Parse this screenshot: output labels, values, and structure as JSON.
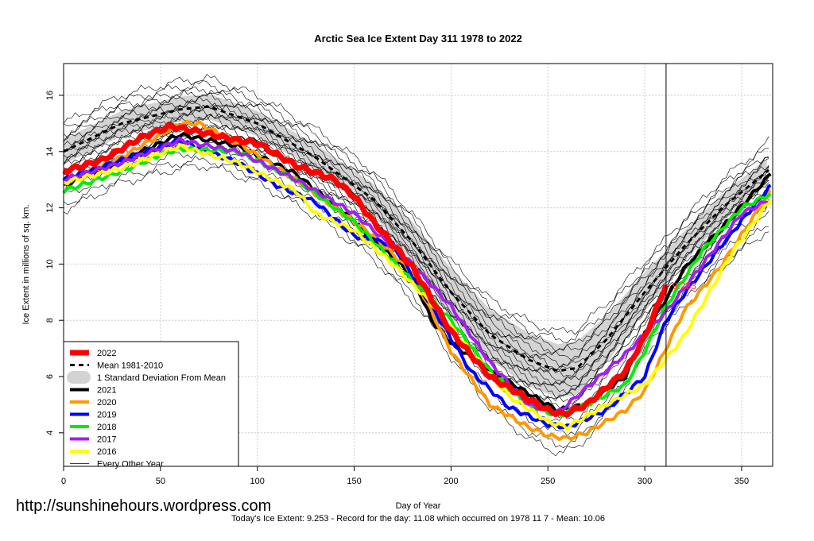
{
  "chart_data": {
    "type": "line",
    "title": "Arctic Sea Ice Extent Day 311 1978 to 2022",
    "xlabel": "Day of Year",
    "ylabel": "Ice Extent in millions of sq. km.",
    "xlim": [
      0,
      366
    ],
    "ylim": [
      2.8,
      17.1
    ],
    "xticks": [
      0,
      50,
      100,
      150,
      200,
      250,
      300,
      350
    ],
    "yticks": [
      4,
      6,
      8,
      10,
      12,
      14,
      16
    ],
    "grid": true,
    "legend_position": "bottom-left",
    "marker_day": 311,
    "marker_label": "9.253",
    "mean": {
      "name": "Mean 1981-2010",
      "days": [
        0,
        30,
        60,
        75,
        100,
        130,
        160,
        180,
        200,
        220,
        240,
        255,
        265,
        280,
        300,
        320,
        340,
        365
      ],
      "values": [
        14.0,
        15.0,
        15.5,
        15.6,
        15.0,
        13.8,
        12.3,
        10.8,
        9.0,
        7.5,
        6.6,
        6.2,
        6.3,
        7.3,
        9.0,
        10.6,
        12.0,
        13.4
      ]
    },
    "sd_band": {
      "name": "1 Standard Deviation From Mean",
      "days": [
        0,
        30,
        60,
        75,
        100,
        130,
        160,
        180,
        200,
        220,
        240,
        255,
        265,
        280,
        300,
        320,
        340,
        365
      ],
      "sd": [
        0.45,
        0.45,
        0.45,
        0.45,
        0.45,
        0.45,
        0.55,
        0.7,
        0.85,
        0.9,
        0.95,
        0.95,
        0.95,
        0.85,
        0.7,
        0.55,
        0.5,
        0.45
      ]
    },
    "every_other_year": {
      "name": "Every Other Year",
      "offsets": [
        1.0,
        0.8,
        0.6,
        0.5,
        0.35,
        0.2,
        0.1,
        0.0,
        -0.1,
        -0.2,
        -0.3,
        -0.4,
        -0.5,
        -0.6,
        -0.7,
        -0.8,
        -0.9,
        -1.1,
        -1.3,
        -1.6,
        -1.9,
        -2.1
      ]
    },
    "series": [
      {
        "name": "2021",
        "color": "#000000",
        "width": 4,
        "days": [
          0,
          30,
          60,
          90,
          120,
          150,
          180,
          190,
          200,
          220,
          240,
          255,
          270,
          290,
          300,
          320,
          340,
          365
        ],
        "values": [
          12.8,
          13.7,
          14.6,
          14.2,
          13.2,
          11.5,
          9.6,
          8.0,
          7.2,
          6.2,
          5.4,
          4.8,
          5.0,
          6.0,
          7.5,
          9.8,
          11.3,
          13.2
        ]
      },
      {
        "name": "2020",
        "color": "#ff9900",
        "width": 4,
        "days": [
          0,
          30,
          60,
          70,
          90,
          120,
          140,
          160,
          180,
          200,
          220,
          240,
          250,
          260,
          270,
          290,
          300,
          311,
          320,
          340,
          365
        ],
        "values": [
          12.9,
          13.8,
          15.0,
          15.0,
          14.3,
          13.0,
          12.0,
          11.0,
          9.7,
          6.9,
          5.0,
          4.2,
          3.9,
          3.8,
          4.0,
          4.8,
          5.5,
          7.0,
          8.3,
          10.0,
          12.6
        ]
      },
      {
        "name": "2019",
        "color": "#0000ff",
        "width": 4,
        "days": [
          0,
          30,
          60,
          90,
          110,
          130,
          150,
          170,
          190,
          210,
          230,
          250,
          260,
          280,
          300,
          311,
          320,
          340,
          365
        ],
        "values": [
          13.0,
          13.7,
          14.4,
          13.6,
          12.8,
          12.2,
          11.0,
          10.7,
          8.5,
          6.2,
          4.9,
          4.3,
          4.2,
          4.8,
          6.0,
          8.0,
          8.9,
          10.7,
          12.8
        ]
      },
      {
        "name": "2018",
        "color": "#00ee00",
        "width": 4,
        "days": [
          0,
          30,
          50,
          60,
          90,
          120,
          150,
          180,
          200,
          220,
          240,
          255,
          270,
          290,
          300,
          311,
          330,
          350,
          365
        ],
        "values": [
          12.6,
          13.3,
          13.9,
          14.1,
          14.0,
          13.0,
          11.5,
          9.4,
          8.0,
          6.2,
          5.0,
          4.6,
          5.0,
          5.7,
          6.9,
          8.5,
          10.5,
          12.0,
          12.5
        ]
      },
      {
        "name": "2017",
        "color": "#a020f0",
        "width": 4,
        "days": [
          0,
          30,
          60,
          90,
          120,
          150,
          180,
          200,
          220,
          240,
          255,
          270,
          290,
          311,
          330,
          350,
          365
        ],
        "values": [
          13.0,
          13.6,
          14.4,
          14.0,
          13.0,
          11.8,
          10.0,
          8.5,
          6.5,
          5.0,
          4.7,
          5.6,
          6.8,
          8.3,
          10.0,
          11.8,
          12.3
        ]
      },
      {
        "name": "2016",
        "color": "#ffff00",
        "width": 4,
        "days": [
          0,
          30,
          60,
          90,
          120,
          130,
          150,
          170,
          190,
          210,
          230,
          250,
          260,
          280,
          300,
          320,
          330,
          345,
          365
        ],
        "values": [
          12.9,
          13.4,
          14.2,
          13.6,
          12.6,
          11.8,
          11.2,
          10.0,
          8.6,
          6.9,
          5.3,
          4.4,
          4.2,
          5.0,
          5.7,
          7.4,
          8.6,
          10.4,
          12.3
        ]
      },
      {
        "name": "2022",
        "color": "#ff0000",
        "width": 7,
        "days": [
          0,
          20,
          40,
          55,
          70,
          90,
          100,
          120,
          140,
          150,
          160,
          180,
          200,
          220,
          240,
          250,
          258,
          270,
          290,
          300,
          311
        ],
        "values": [
          13.3,
          13.7,
          14.5,
          14.9,
          14.7,
          14.4,
          14.3,
          13.5,
          13.0,
          12.4,
          11.5,
          9.9,
          7.6,
          6.0,
          5.2,
          4.8,
          4.65,
          5.0,
          6.2,
          7.4,
          9.253
        ]
      }
    ],
    "legend": [
      "2022",
      "Mean 1981-2010",
      "1 Standard Deviation From Mean",
      "2021",
      "2020",
      "2019",
      "2018",
      "2017",
      "2016",
      "Every Other Year"
    ]
  },
  "watermark": "http://sunshinehours.wordpress.com",
  "footer": "Today's Ice Extent: 9.253  - Record for the day: 11.08 which occurred on 1978 11 7  - Mean: 10.06"
}
